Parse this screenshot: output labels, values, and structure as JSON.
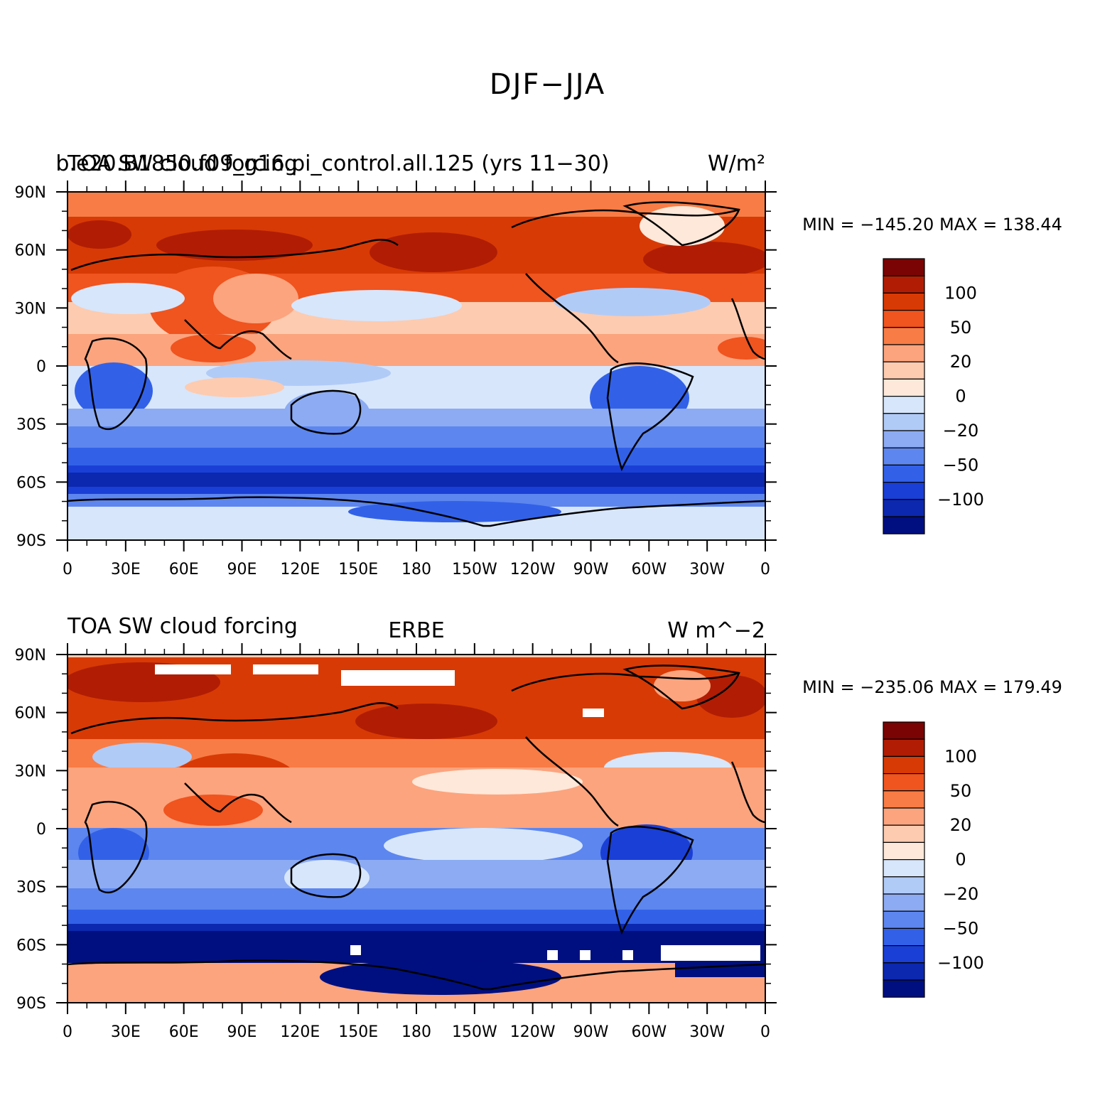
{
  "figure": {
    "title": "DJF−JJA"
  },
  "panels": [
    {
      "left_title": "TOA SW cloud forcing",
      "center_title": "b.e20.B1850.f09_g16.pi_control.all.125 (yrs 11−30)",
      "units": "W/m²",
      "minmax": "MIN = −145.20  MAX = 138.44"
    },
    {
      "left_title": "TOA SW cloud forcing",
      "center_title": "ERBE",
      "units": "W m^−2",
      "minmax": "MIN = −235.06  MAX = 179.49"
    }
  ],
  "map_axes": {
    "lat_labels": [
      "90N",
      "60N",
      "30N",
      "0",
      "30S",
      "60S",
      "90S"
    ],
    "lon_labels": [
      "0",
      "30E",
      "60E",
      "90E",
      "120E",
      "150E",
      "180",
      "150W",
      "120W",
      "90W",
      "60W",
      "30W",
      "0"
    ]
  },
  "colorbar": {
    "labels": [
      "100",
      "50",
      "20",
      "0",
      "−20",
      "−50",
      "−100"
    ],
    "colors": [
      "#7a0403",
      "#b01d04",
      "#d83a05",
      "#f0541f",
      "#f87c45",
      "#fca47e",
      "#fdcbb0",
      "#fee8d9",
      "#d7e6fb",
      "#b1cbf7",
      "#8cabf2",
      "#5d86ee",
      "#3261e8",
      "#1a3fd6",
      "#0b28ae",
      "#000f80"
    ]
  }
}
